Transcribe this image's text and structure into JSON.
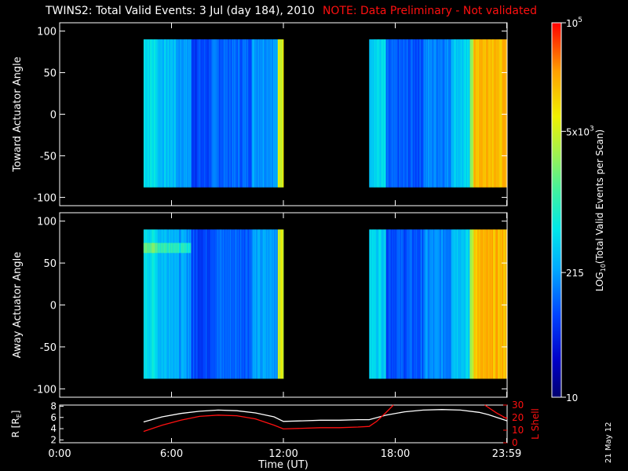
{
  "header": {
    "title": "TWINS2: Total Valid Events:  3 Jul (day 184), 2010",
    "note": "NOTE: Data Preliminary - Not validated"
  },
  "colors": {
    "background": "#000000",
    "axes": "#ffffff",
    "note": "#ff1010",
    "r_line": "#ffffff",
    "lshell_line": "#ff1010"
  },
  "chart_data": [
    {
      "type": "heatmap",
      "name": "toward",
      "ylabel": "Toward Actuator Angle",
      "ylim": [
        -110,
        110
      ],
      "yticks": [
        100,
        50,
        0,
        -50,
        -100
      ],
      "xlim_hours": [
        0,
        24
      ],
      "data_intervals_hours": [
        [
          4.5,
          12.0
        ],
        [
          16.6,
          24.0
        ]
      ],
      "angle_range": [
        -88,
        90
      ],
      "color_scale": "log",
      "trend": "cyan (~300) at 4.5h, dark blue (~50-100) 7-12h, yellow at 12h; after 16.6h blue-cyan rising to orange (~5x10^3+) after 22h"
    },
    {
      "type": "heatmap",
      "name": "away",
      "ylabel": "Away Actuator Angle",
      "ylim": [
        -110,
        110
      ],
      "yticks": [
        100,
        50,
        0,
        -50,
        -100
      ],
      "xlim_hours": [
        0,
        24
      ],
      "data_intervals_hours": [
        [
          4.5,
          12.0
        ],
        [
          16.6,
          24.0
        ]
      ],
      "angle_range": [
        -88,
        90
      ],
      "color_scale": "log",
      "trend": "similar to toward panel with a brighter band near +70 deg between 4.5h and 7h"
    },
    {
      "type": "line",
      "name": "orbit",
      "ylabel_left": "R [R",
      "ylabel_left_sub": "E",
      "ylabel_left_end": "]",
      "ylabel_right": "L Shell",
      "yticks_left": [
        8,
        6,
        4,
        2
      ],
      "yticks_right": [
        30,
        20,
        10,
        0
      ],
      "ylim_left": [
        1.5,
        8.2
      ],
      "ylim_right": [
        0,
        30
      ],
      "xlabel": "Time (UT)",
      "xticks": [
        "0:00",
        "6:00",
        "12:00",
        "18:00",
        "23:59"
      ],
      "xtick_hours": [
        0,
        6,
        12,
        18,
        23.98
      ],
      "series": [
        {
          "axis": "left",
          "hours": [
            4.5,
            5.5,
            6.5,
            7.5,
            8.5,
            9.5,
            10.5,
            11.5,
            12.0,
            13.0,
            14.0,
            15.0,
            16.0,
            16.6,
            17.5,
            18.5,
            19.5,
            20.5,
            21.5,
            22.5,
            23.0,
            24.0
          ],
          "values": [
            5.2,
            6.1,
            6.7,
            7.1,
            7.3,
            7.2,
            6.8,
            6.1,
            5.3,
            5.4,
            5.5,
            5.5,
            5.6,
            5.6,
            6.4,
            7.0,
            7.3,
            7.4,
            7.3,
            6.9,
            6.5,
            5.4
          ]
        },
        {
          "axis": "right",
          "hours": [
            4.5,
            5.5,
            6.5,
            7.5,
            8.5,
            9.5,
            10.5,
            11.5,
            12.0,
            13.0,
            14.0,
            15.0,
            16.0,
            16.6,
            17.0,
            17.5,
            17.9
          ],
          "values": [
            9,
            14,
            18,
            21,
            22,
            21.5,
            19,
            14,
            11,
            11.5,
            12,
            12,
            12.5,
            13,
            17,
            24,
            30
          ]
        },
        {
          "axis": "right",
          "hours": [
            22.8,
            23.4,
            24.0
          ],
          "values": [
            30,
            24,
            19
          ]
        }
      ]
    }
  ],
  "colorbar": {
    "label_main": "LOG",
    "label_sub": "10",
    "label_rest": "(Total Valid Events per Scan)",
    "ticks": [
      {
        "base": "10",
        "exp": "5",
        "level": 1.0
      },
      {
        "base": "5x10",
        "exp": "3",
        "level": 0.71
      },
      {
        "base": "215",
        "exp": "",
        "level": 0.333
      },
      {
        "base": "10",
        "exp": "",
        "level": 0.0
      }
    ]
  },
  "footer": {
    "datestamp": "21 May 12"
  }
}
